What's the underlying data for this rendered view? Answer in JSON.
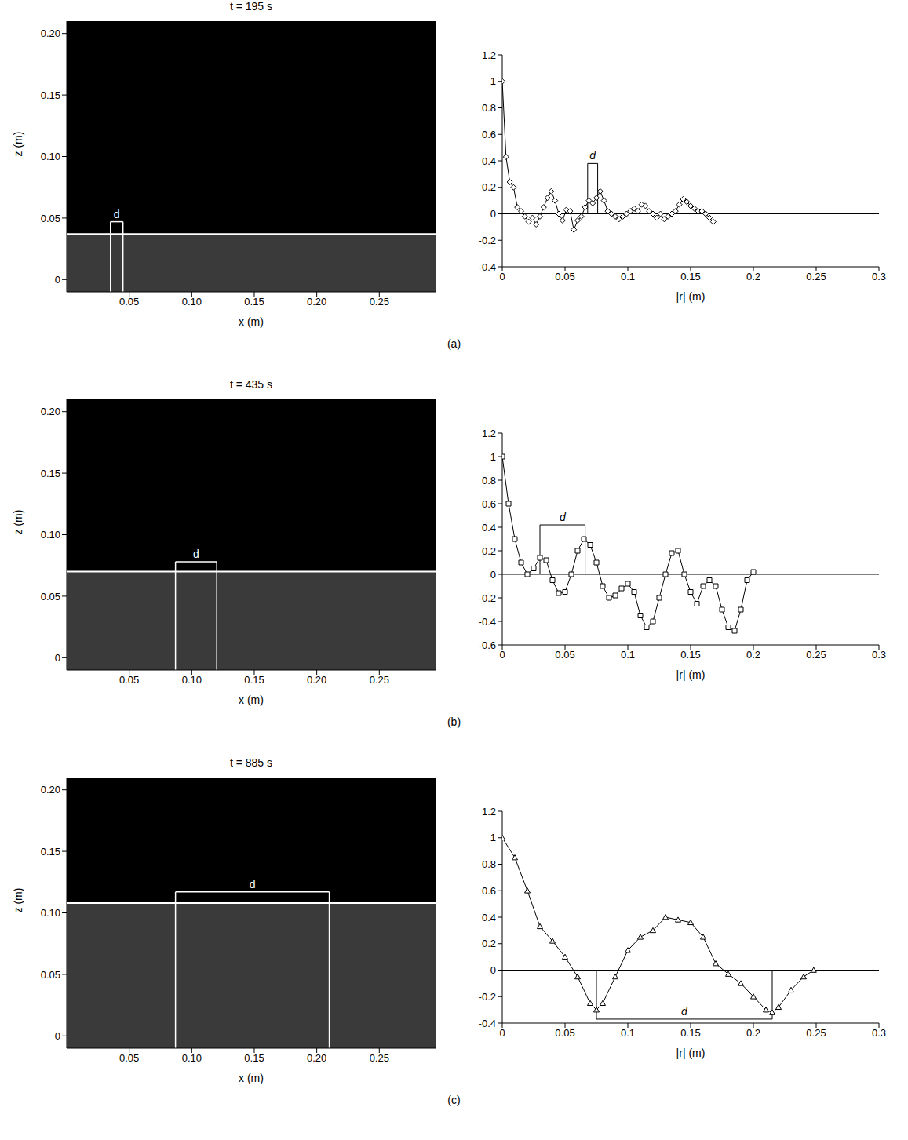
{
  "panel_labels": [
    "(a)",
    "(b)",
    "(c)"
  ],
  "chart_data": [
    {
      "type": "image",
      "title": "t = 195 s",
      "x_label": "x (m)",
      "y_label": "z (m)",
      "xlim": [
        0,
        0.295
      ],
      "ylim": [
        -0.01,
        0.21
      ],
      "xticks": [
        0.05,
        {
          "value": 0.1,
          "label": "0.10"
        },
        0.15,
        {
          "value": 0.2,
          "label": "0.20"
        },
        0.25
      ],
      "yticks": [
        0,
        0.05,
        {
          "value": 0.1,
          "label": "0.10"
        },
        0.15,
        {
          "value": 0.2,
          "label": "0.20"
        }
      ],
      "line_z": 0.037,
      "d": {
        "label": "d",
        "x": [
          0.035,
          0.045
        ],
        "z": 0.047
      }
    },
    {
      "type": "line",
      "x_label": "|r| (m)",
      "marker": "diamond",
      "color": "#000000",
      "xlim": [
        0,
        0.3
      ],
      "ylim": [
        -0.4,
        1.2
      ],
      "xticks": [
        0,
        0.05,
        0.1,
        0.15,
        0.2,
        0.25,
        0.3
      ],
      "yticks": [
        -0.4,
        -0.2,
        0,
        0.2,
        0.4,
        0.6,
        0.8,
        1,
        1.2
      ],
      "x": [
        0,
        0.003,
        0.006,
        0.009,
        0.012,
        0.015,
        0.018,
        0.021,
        0.024,
        0.027,
        0.03,
        0.033,
        0.036,
        0.039,
        0.042,
        0.045,
        0.048,
        0.051,
        0.054,
        0.057,
        0.06,
        0.063,
        0.066,
        0.069,
        0.072,
        0.075,
        0.078,
        0.081,
        0.084,
        0.087,
        0.09,
        0.093,
        0.096,
        0.099,
        0.102,
        0.105,
        0.108,
        0.111,
        0.114,
        0.117,
        0.12,
        0.123,
        0.126,
        0.129,
        0.132,
        0.135,
        0.138,
        0.141,
        0.144,
        0.147,
        0.15,
        0.153,
        0.156,
        0.159,
        0.162,
        0.165,
        0.168
      ],
      "values": [
        1,
        0.43,
        0.24,
        0.2,
        0.05,
        0.02,
        -0.02,
        -0.06,
        -0.03,
        -0.08,
        -0.02,
        0.05,
        0.12,
        0.17,
        0.1,
        0,
        -0.05,
        0.03,
        0.02,
        -0.12,
        -0.05,
        -0.02,
        0.05,
        0.1,
        0.08,
        0.12,
        0.17,
        0.1,
        0.02,
        0,
        -0.02,
        -0.04,
        -0.02,
        0,
        0.02,
        0.04,
        0.02,
        0.07,
        0.06,
        0.02,
        0,
        -0.03,
        0,
        -0.04,
        -0.02,
        0,
        0.02,
        0.07,
        0.11,
        0.09,
        0.06,
        0.04,
        0.02,
        0.02,
        0,
        -0.03,
        -0.06
      ],
      "d": {
        "label": "d",
        "x": [
          0.068,
          0.076
        ],
        "y": 0.38
      }
    },
    {
      "type": "image",
      "title": "t = 435 s",
      "x_label": "x (m)",
      "y_label": "z (m)",
      "xlim": [
        0,
        0.295
      ],
      "ylim": [
        -0.01,
        0.21
      ],
      "xticks": [
        0.05,
        {
          "value": 0.1,
          "label": "0.10"
        },
        0.15,
        {
          "value": 0.2,
          "label": "0.20"
        },
        0.25
      ],
      "yticks": [
        0,
        0.05,
        {
          "value": 0.1,
          "label": "0.10"
        },
        0.15,
        {
          "value": 0.2,
          "label": "0.20"
        }
      ],
      "line_z": 0.07,
      "d": {
        "label": "d",
        "x": [
          0.087,
          0.12
        ],
        "z": 0.078
      }
    },
    {
      "type": "line",
      "x_label": "|r| (m)",
      "marker": "square",
      "color": "#000000",
      "xlim": [
        0,
        0.3
      ],
      "ylim": [
        -0.6,
        1.2
      ],
      "xticks": [
        0,
        0.05,
        0.1,
        0.15,
        0.2,
        0.25,
        0.3
      ],
      "yticks": [
        -0.6,
        -0.4,
        -0.2,
        0,
        0.2,
        0.4,
        0.6,
        0.8,
        1,
        1.2
      ],
      "x": [
        0,
        0.005,
        0.01,
        0.015,
        0.02,
        0.025,
        0.03,
        0.035,
        0.04,
        0.045,
        0.05,
        0.055,
        0.06,
        0.065,
        0.07,
        0.075,
        0.08,
        0.085,
        0.09,
        0.095,
        0.1,
        0.105,
        0.11,
        0.115,
        0.12,
        0.125,
        0.13,
        0.135,
        0.14,
        0.145,
        0.15,
        0.155,
        0.16,
        0.165,
        0.17,
        0.175,
        0.18,
        0.185,
        0.19,
        0.195,
        0.2
      ],
      "values": [
        1,
        0.6,
        0.3,
        0.1,
        0,
        0.05,
        0.14,
        0.12,
        -0.05,
        -0.16,
        -0.15,
        0,
        0.2,
        0.3,
        0.25,
        0.1,
        -0.1,
        -0.2,
        -0.18,
        -0.12,
        -0.08,
        -0.15,
        -0.35,
        -0.45,
        -0.4,
        -0.2,
        0,
        0.18,
        0.2,
        0,
        -0.15,
        -0.25,
        -0.1,
        -0.05,
        -0.1,
        -0.3,
        -0.45,
        -0.48,
        -0.3,
        -0.05,
        0.02
      ],
      "d": {
        "label": "d",
        "x": [
          0.03,
          0.066
        ],
        "y": 0.42
      }
    },
    {
      "type": "image",
      "title": "t = 885 s",
      "x_label": "x (m)",
      "y_label": "z (m)",
      "xlim": [
        0,
        0.295
      ],
      "ylim": [
        -0.01,
        0.21
      ],
      "xticks": [
        0.05,
        {
          "value": 0.1,
          "label": "0.10"
        },
        0.15,
        {
          "value": 0.2,
          "label": "0.20"
        },
        0.25
      ],
      "yticks": [
        0,
        0.05,
        {
          "value": 0.1,
          "label": "0.10"
        },
        0.15,
        {
          "value": 0.2,
          "label": "0.20"
        }
      ],
      "line_z": 0.108,
      "d": {
        "label": "d",
        "x": [
          0.087,
          0.21
        ],
        "z": 0.117
      }
    },
    {
      "type": "line",
      "x_label": "|r| (m)",
      "marker": "triangle",
      "color": "#000000",
      "xlim": [
        0,
        0.3
      ],
      "ylim": [
        -0.4,
        1.2
      ],
      "xticks": [
        0,
        0.05,
        0.1,
        0.15,
        0.2,
        0.25,
        0.3
      ],
      "yticks": [
        -0.4,
        -0.2,
        0,
        0.2,
        0.4,
        0.6,
        0.8,
        1,
        1.2
      ],
      "x": [
        0,
        0.01,
        0.02,
        0.03,
        0.04,
        0.05,
        0.06,
        0.07,
        0.075,
        0.08,
        0.09,
        0.1,
        0.11,
        0.12,
        0.13,
        0.14,
        0.15,
        0.16,
        0.17,
        0.18,
        0.19,
        0.2,
        0.21,
        0.215,
        0.22,
        0.23,
        0.24,
        0.248
      ],
      "values": [
        1,
        0.85,
        0.6,
        0.33,
        0.22,
        0.1,
        -0.05,
        -0.25,
        -0.3,
        -0.25,
        -0.05,
        0.15,
        0.25,
        0.3,
        0.4,
        0.38,
        0.36,
        0.25,
        0.05,
        -0.03,
        -0.1,
        -0.2,
        -0.3,
        -0.32,
        -0.28,
        -0.15,
        -0.05,
        0
      ],
      "d": {
        "label": "d",
        "x": [
          0.075,
          0.215
        ],
        "y": -0.37
      }
    }
  ]
}
